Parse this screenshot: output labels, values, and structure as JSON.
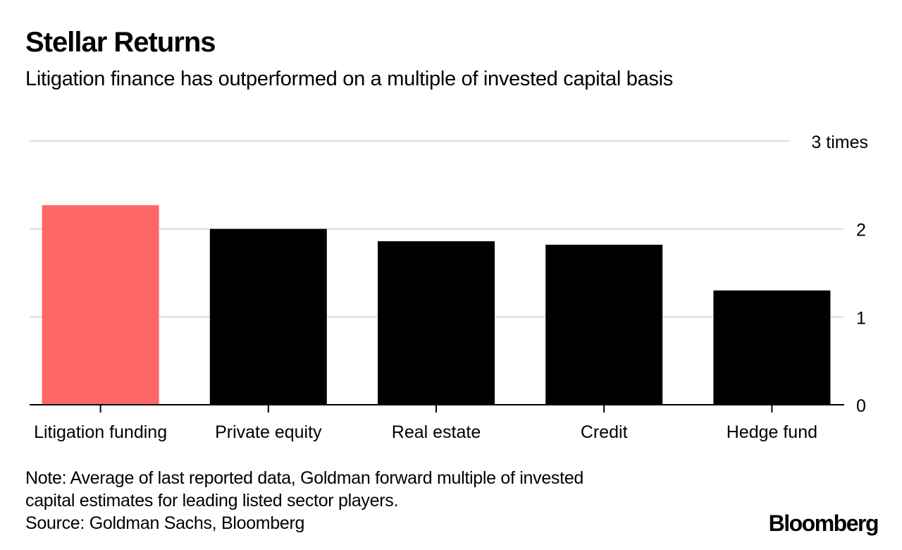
{
  "header": {
    "title": "Stellar Returns",
    "subtitle": "Litigation finance has outperformed on a multiple of invested capital basis"
  },
  "footer": {
    "note_line1": "Note: Average of last reported data, Goldman forward multiple of invested",
    "note_line2": "capital estimates for leading listed sector players.",
    "source": "Source: Goldman Sachs, Bloomberg",
    "brand": "Bloomberg"
  },
  "chart_data": {
    "type": "bar",
    "title": "Stellar Returns",
    "subtitle": "Litigation finance has outperformed on a multiple of invested capital basis",
    "xlabel": "",
    "ylabel": "times",
    "categories": [
      "Litigation funding",
      "Private equity",
      "Real estate",
      "Credit",
      "Hedge fund"
    ],
    "values": [
      2.27,
      2.0,
      1.86,
      1.82,
      1.3
    ],
    "colors": [
      "#ff6666",
      "#000000",
      "#000000",
      "#000000",
      "#000000"
    ],
    "ylim": [
      0,
      3
    ],
    "yticks": [
      0,
      1,
      2,
      3
    ],
    "ytick_labels": [
      "0",
      "1",
      "2",
      "3 times"
    ],
    "y_axis_side": "right",
    "grid": true,
    "grid_color": "#dddddd",
    "highlight_color": "#ff6666"
  }
}
